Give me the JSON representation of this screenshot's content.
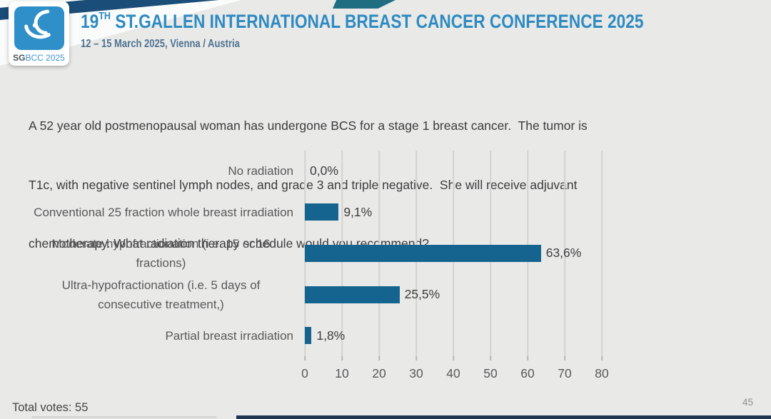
{
  "header": {
    "logo": {
      "sg": "SG",
      "rest": "BCC 2025"
    },
    "title": {
      "prefix": "19",
      "sup": "TH",
      "rest": " ST.GALLEN INTERNATIONAL BREAST CANCER CONFERENCE 2025"
    },
    "subtitle": "12 – 15 March 2025, Vienna / Austria"
  },
  "question": {
    "lines": [
      "A 52 year old postmenopausal woman has undergone BCS for a stage 1 breast cancer.  The tumor is",
      "T1c, with negative sentinel lymph nodes, and grade 3 and triple negative.  She will receive adjuvant",
      "chemotherapy. What radiation therapy schedule would you recommend?"
    ]
  },
  "chart_data": {
    "type": "bar",
    "orientation": "horizontal",
    "categories": [
      "No radiation",
      "Conventional 25 fraction whole breast irradiation",
      "Moderate hypofractionation (i.e. 15 or 16 fractions)",
      "Ultra-hypofractionation (i.e. 5 days of consecutive treatment,)",
      "Partial breast irradiation"
    ],
    "values": [
      0.0,
      9.1,
      63.6,
      25.5,
      1.8
    ],
    "value_labels": [
      "0,0%",
      "9,1%",
      "63,6%",
      "25,5%",
      "1,8%"
    ],
    "x_ticks": [
      0,
      10,
      20,
      30,
      40,
      50,
      60,
      70,
      80
    ],
    "xlim": [
      0,
      80
    ],
    "title": "",
    "xlabel": "",
    "ylabel": "",
    "grid": true,
    "legend": false,
    "bar_color": "#15638f",
    "gridline_color": "#d2d2d0"
  },
  "footer": {
    "total_votes": "Total votes: 55",
    "page_number": "45"
  }
}
